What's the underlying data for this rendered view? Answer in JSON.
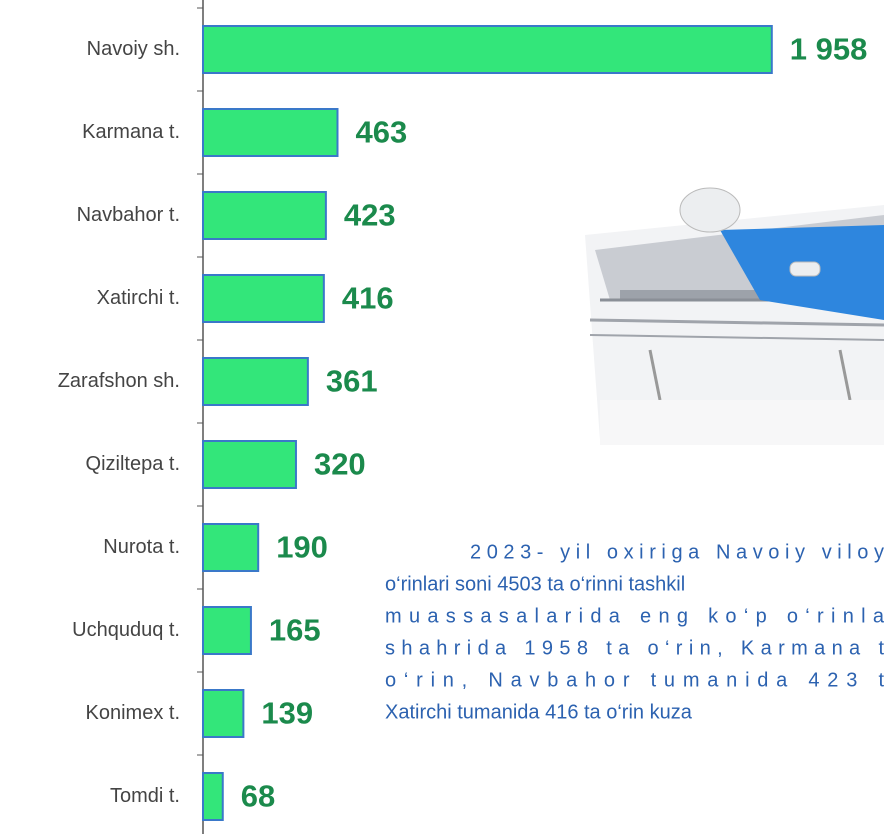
{
  "chart_data": {
    "type": "barh",
    "categories": [
      "Navoiy sh.",
      "Karmana t.",
      "Navbahor t.",
      "Xatirchi t.",
      "Zarafshon sh.",
      "Qiziltepa t.",
      "Nurota t.",
      "Uchquduq t.",
      "Konimex t.",
      "Tomdi t."
    ],
    "values": [
      1958,
      463,
      423,
      416,
      361,
      320,
      190,
      165,
      139,
      68
    ],
    "value_labels": [
      "1 958",
      "463",
      "423",
      "416",
      "361",
      "320",
      "190",
      "165",
      "139",
      "68"
    ],
    "color": "#33e67a",
    "xlim": [
      0,
      2000
    ]
  },
  "paragraph": [
    "2023- yil oxiriga Navoiy viloy",
    "o‘rinlari soni 4503 ta o‘rinni tashkil",
    "muassasalarida eng ko‘p o‘rinla",
    "shahrida 1958 ta o‘rin, Karmana t",
    "o‘rin, Navbahor tumanida 423 t",
    "Xatirchi tumanida 416 ta o‘rin kuza"
  ]
}
